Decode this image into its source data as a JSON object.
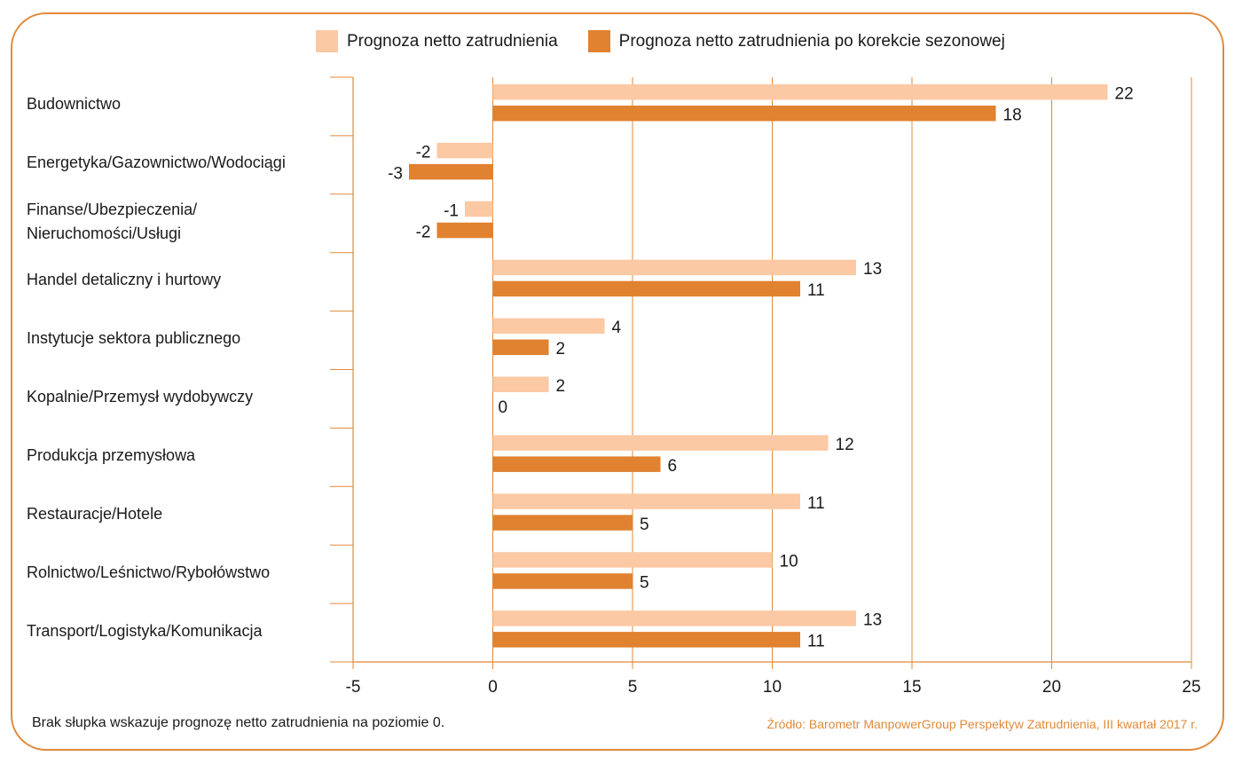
{
  "colors": {
    "light": "#fbc9a4",
    "dark": "#e08230",
    "axis": "#e08a3a",
    "grid": "#e08a3a"
  },
  "legend": {
    "items": [
      {
        "label": "Prognoza netto zatrudnienia",
        "color": "#fbc9a4"
      },
      {
        "label": "Prognoza netto zatrudnienia po korekcie sezonowej",
        "color": "#e08230"
      }
    ]
  },
  "footnote": "Brak słupka wskazuje prognozę netto zatrudnienia na poziomie 0.",
  "source": "Źródło: Barometr ManpowerGroup Perspektyw Zatrudnienia, III kwartał 2017 r.",
  "chart_data": {
    "type": "bar",
    "orientation": "horizontal",
    "categories": [
      [
        "Budownictwo"
      ],
      [
        "Energetyka/Gazownictwo/Wodociągi"
      ],
      [
        "Finanse/Ubezpieczenia/",
        "Nieruchomości/Usługi"
      ],
      [
        "Handel detaliczny i hurtowy"
      ],
      [
        "Instytucje sektora publicznego"
      ],
      [
        "Kopalnie/Przemysł wydobywczy"
      ],
      [
        "Produkcja przemysłowa"
      ],
      [
        "Restauracje/Hotele"
      ],
      [
        "Rolnictwo/Leśnictwo/Rybołówstwo"
      ],
      [
        "Transport/Logistyka/Komunikacja"
      ]
    ],
    "series": [
      {
        "name": "Prognoza netto zatrudnienia",
        "values": [
          22,
          -2,
          -1,
          13,
          4,
          2,
          12,
          11,
          10,
          13
        ]
      },
      {
        "name": "Prognoza netto zatrudnienia po korekcie sezonowej",
        "values": [
          18,
          -3,
          -2,
          11,
          2,
          0,
          6,
          5,
          5,
          11
        ]
      }
    ],
    "xlim": [
      -5,
      25
    ],
    "xticks": [
      -5,
      0,
      5,
      10,
      15,
      20,
      25
    ],
    "grid": true,
    "legend_position": "top"
  }
}
